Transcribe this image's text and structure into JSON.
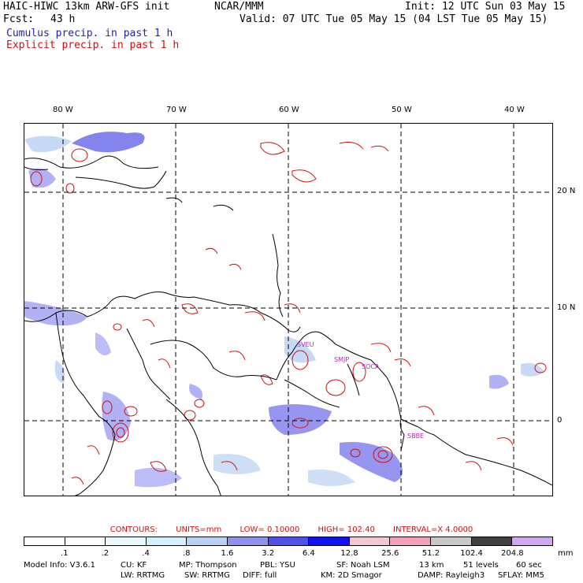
{
  "header": {
    "model_title": "HAIC-HIWC 13km ARW-GFS init",
    "org": "NCAR/MMM",
    "init": "Init: 12 UTC Sun 03 May 15",
    "fcst_label": "Fcst:",
    "fcst_value": "43 h",
    "valid": "Valid: 07 UTC Tue 05 May 15 (04 LST Tue 05 May 15)",
    "field1": "Cumulus precip. in past 1 h",
    "field2": "Explicit precip. in past 1 h"
  },
  "map": {
    "lon_labels": [
      "80 W",
      "70 W",
      "60 W",
      "50 W",
      "40 W"
    ],
    "lat_labels": [
      "20 N",
      "10 N",
      "0"
    ],
    "stations": [
      "SVEU",
      "SMJP",
      "SOCA",
      "SBBE"
    ]
  },
  "contours": {
    "label": "CONTOURS:",
    "units": "UNITS=mm",
    "low": "LOW= 0.10000",
    "high": "HIGH= 102.40",
    "interval": "INTERVAL=X 4.0000"
  },
  "colorbar": {
    "labels": [
      ".1",
      ".2",
      ".4",
      ".8",
      "1.6",
      "3.2",
      "6.4",
      "12.8",
      "25.6",
      "51.2",
      "102.4",
      "204.8"
    ],
    "unit": "mm",
    "colors": [
      "#ffffff",
      "#ffffff",
      "#e8f8fc",
      "#d4eefa",
      "#b8d0f4",
      "#9090f0",
      "#5050e8",
      "#1010f0",
      "#f4c8d0",
      "#f0a0b8",
      "#c8c8c8",
      "#404040",
      "#d0a8f0"
    ]
  },
  "model_info": {
    "line1": [
      "Model Info: V3.6.1",
      "CU: KF",
      "MP: Thompson",
      "PBL: YSU",
      "SF: Noah LSM",
      "13 km",
      "51 levels",
      "60 sec"
    ],
    "line2": [
      "LW: RRTMG",
      "SW: RRTMG",
      "DIFF: full",
      "KM: 2D Smagor",
      "DAMP: Rayleigh3",
      "SFLAY: MM5"
    ]
  }
}
